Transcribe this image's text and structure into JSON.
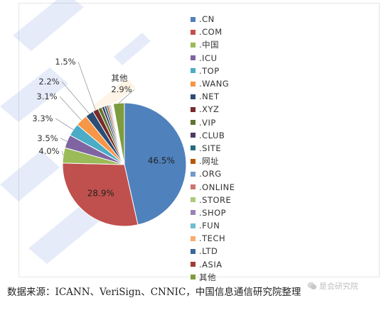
{
  "colors": {
    "watermark_orange": "#f5b04a",
    "watermark_blue": "#3d6fd6"
  },
  "chart_data": {
    "type": "pie",
    "slices": [
      {
        "label": ".CN",
        "value": 46.5,
        "color": "#4f81bd",
        "display": "46.5%"
      },
      {
        "label": ".COM",
        "value": 28.9,
        "color": "#c0504d",
        "display": "28.9%"
      },
      {
        "label": ".中国",
        "value": 4.0,
        "color": "#9bbb59",
        "display": "4.0%"
      },
      {
        "label": ".ICU",
        "value": 3.5,
        "color": "#8064a2",
        "display": "3.5%"
      },
      {
        "label": ".TOP",
        "value": 3.3,
        "color": "#4bacc6",
        "display": "3.3%"
      },
      {
        "label": ".WANG",
        "value": 3.1,
        "color": "#f79646",
        "display": "3.1%"
      },
      {
        "label": ".NET",
        "value": 2.2,
        "color": "#2c4d75",
        "display": "2.2%"
      },
      {
        "label": ".XYZ",
        "value": 1.5,
        "color": "#772c2a",
        "display": "1.5%"
      },
      {
        "label": ".VIP",
        "value": 1.0,
        "color": "#5f7530",
        "display": ""
      },
      {
        "label": ".CLUB",
        "value": 0.7,
        "color": "#4d3b62",
        "display": ""
      },
      {
        "label": ".SITE",
        "value": 0.6,
        "color": "#276a7c",
        "display": ""
      },
      {
        "label": ".网址",
        "value": 0.5,
        "color": "#b65708",
        "display": ""
      },
      {
        "label": ".ORG",
        "value": 0.4,
        "color": "#729aca",
        "display": ""
      },
      {
        "label": ".ONLINE",
        "value": 0.3,
        "color": "#cd7371",
        "display": ""
      },
      {
        "label": ".STORE",
        "value": 0.2,
        "color": "#afc97a",
        "display": ""
      },
      {
        "label": ".SHOP",
        "value": 0.1,
        "color": "#9983b5",
        "display": ""
      },
      {
        "label": ".FUN",
        "value": 0.1,
        "color": "#6fbdd1",
        "display": ""
      },
      {
        "label": ".TECH",
        "value": 0.1,
        "color": "#f9ab6b",
        "display": ""
      },
      {
        "label": ".LTD",
        "value": 0.05,
        "color": "#3a679c",
        "display": ""
      },
      {
        "label": ".ASIA",
        "value": 0.05,
        "color": "#9f3b38",
        "display": ""
      },
      {
        "label": "其他",
        "value": 2.9,
        "color": "#7e9c3e",
        "display": "2.9%"
      }
    ],
    "other_label": "其他",
    "legend_position": "right"
  },
  "source_text": "数据来源：ICANN、VeriSign、CNNIC，中国信息通信研究院整理",
  "badge_text": "是会研究院"
}
